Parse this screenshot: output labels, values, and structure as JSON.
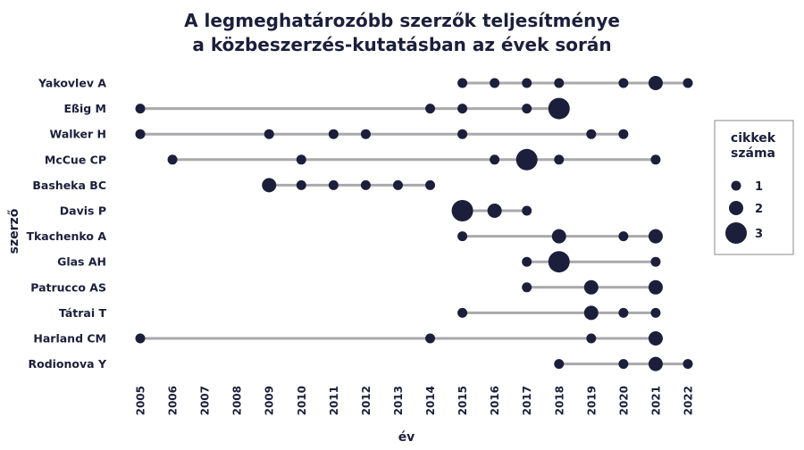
{
  "chart_data": {
    "type": "dot-range",
    "title_line1": "A legmeghatározóbb szerzők teljesítménye",
    "title_line2": "a közbeszerzés-kutatásban az évek során",
    "xlabel": "év",
    "ylabel": "szerző",
    "xlim": [
      2005,
      2022
    ],
    "x_ticks": [
      2005,
      2006,
      2007,
      2008,
      2009,
      2010,
      2011,
      2012,
      2013,
      2014,
      2015,
      2016,
      2017,
      2018,
      2019,
      2020,
      2021,
      2022
    ],
    "grid": false,
    "legend": {
      "title_line1": "cikkek",
      "title_line2": "száma",
      "position": "right",
      "entries": [
        {
          "label": "1",
          "value": 1
        },
        {
          "label": "2",
          "value": 2
        },
        {
          "label": "3",
          "value": 3
        }
      ]
    },
    "colors": {
      "dot": "#1b1f3b",
      "line": "#a9a9ab",
      "highlight_label": "#b08d57",
      "text": "#1b1f3b"
    },
    "authors": [
      {
        "name": "Yakovlev A",
        "highlight": false,
        "points": [
          [
            2015,
            1
          ],
          [
            2016,
            1
          ],
          [
            2017,
            1
          ],
          [
            2018,
            1
          ],
          [
            2020,
            1
          ],
          [
            2021,
            2
          ],
          [
            2022,
            1
          ]
        ]
      },
      {
        "name": "Eßig M",
        "highlight": false,
        "points": [
          [
            2005,
            1
          ],
          [
            2014,
            1
          ],
          [
            2015,
            1
          ],
          [
            2017,
            1
          ],
          [
            2018,
            3
          ]
        ]
      },
      {
        "name": "Walker H",
        "highlight": false,
        "points": [
          [
            2005,
            1
          ],
          [
            2009,
            1
          ],
          [
            2011,
            1
          ],
          [
            2012,
            1
          ],
          [
            2015,
            1
          ],
          [
            2019,
            1
          ],
          [
            2020,
            1
          ]
        ]
      },
      {
        "name": "McCue CP",
        "highlight": false,
        "points": [
          [
            2006,
            1
          ],
          [
            2010,
            1
          ],
          [
            2016,
            1
          ],
          [
            2017,
            3
          ],
          [
            2018,
            1
          ],
          [
            2021,
            1
          ]
        ]
      },
      {
        "name": "Basheka BC",
        "highlight": false,
        "points": [
          [
            2009,
            2
          ],
          [
            2010,
            1
          ],
          [
            2011,
            1
          ],
          [
            2012,
            1
          ],
          [
            2013,
            1
          ],
          [
            2014,
            1
          ]
        ]
      },
      {
        "name": "Davis P",
        "highlight": false,
        "points": [
          [
            2015,
            3
          ],
          [
            2016,
            2
          ],
          [
            2017,
            1
          ]
        ]
      },
      {
        "name": "Tkachenko A",
        "highlight": false,
        "points": [
          [
            2015,
            1
          ],
          [
            2018,
            2
          ],
          [
            2020,
            1
          ],
          [
            2021,
            2
          ]
        ]
      },
      {
        "name": "Glas AH",
        "highlight": false,
        "points": [
          [
            2017,
            1
          ],
          [
            2018,
            3
          ],
          [
            2021,
            1
          ]
        ]
      },
      {
        "name": "Patrucco AS",
        "highlight": false,
        "points": [
          [
            2017,
            1
          ],
          [
            2019,
            2
          ],
          [
            2021,
            2
          ]
        ]
      },
      {
        "name": "Tátrai T",
        "highlight": true,
        "points": [
          [
            2015,
            1
          ],
          [
            2019,
            2
          ],
          [
            2020,
            1
          ],
          [
            2021,
            1
          ]
        ]
      },
      {
        "name": "Harland CM",
        "highlight": false,
        "points": [
          [
            2005,
            1
          ],
          [
            2014,
            1
          ],
          [
            2019,
            1
          ],
          [
            2021,
            2
          ]
        ]
      },
      {
        "name": "Rodionova Y",
        "highlight": false,
        "points": [
          [
            2018,
            1
          ],
          [
            2020,
            1
          ],
          [
            2021,
            2
          ],
          [
            2022,
            1
          ]
        ]
      }
    ]
  }
}
